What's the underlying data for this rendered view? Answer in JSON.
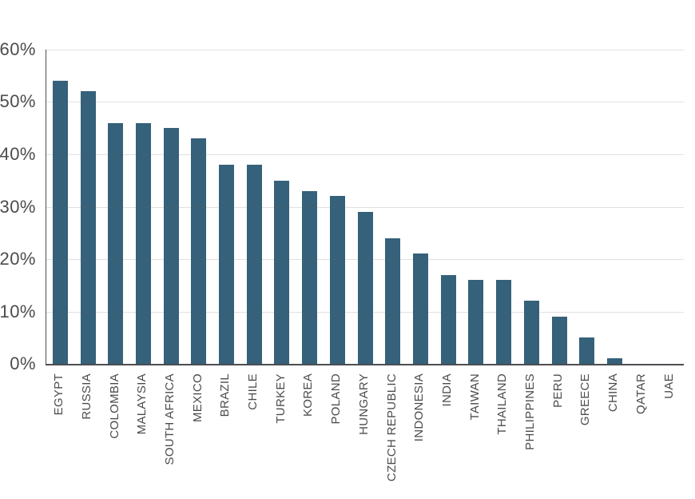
{
  "chart_data": {
    "type": "bar",
    "categories": [
      "EGYPT",
      "RUSSIA",
      "COLOMBIA",
      "MALAYSIA",
      "SOUTH AFRICA",
      "MEXICO",
      "BRAZIL",
      "CHILE",
      "TURKEY",
      "KOREA",
      "POLAND",
      "HUNGARY",
      "CZECH REPUBLIC",
      "INDONESIA",
      "INDIA",
      "TAIWAN",
      "THAILAND",
      "PHILIPPINES",
      "PERU",
      "GREECE",
      "CHINA",
      "QATAR",
      "UAE"
    ],
    "values": [
      54,
      52,
      46,
      46,
      45,
      43,
      38,
      38,
      35,
      33,
      32,
      29,
      24,
      21,
      17,
      16,
      16,
      12,
      9,
      5,
      1,
      0,
      0
    ],
    "xlabel": "",
    "ylabel": "",
    "ylim": [
      0,
      60
    ],
    "yticks": [
      0,
      10,
      20,
      30,
      40,
      50,
      60
    ],
    "ytick_suffix": "%",
    "grid": true,
    "legend": false,
    "colors": {
      "bar": "#35617a",
      "gridline": "#e6e3e0",
      "axis": "#4d4e52",
      "tick_label": "#4c4c4c",
      "background": "#ffffff"
    }
  }
}
